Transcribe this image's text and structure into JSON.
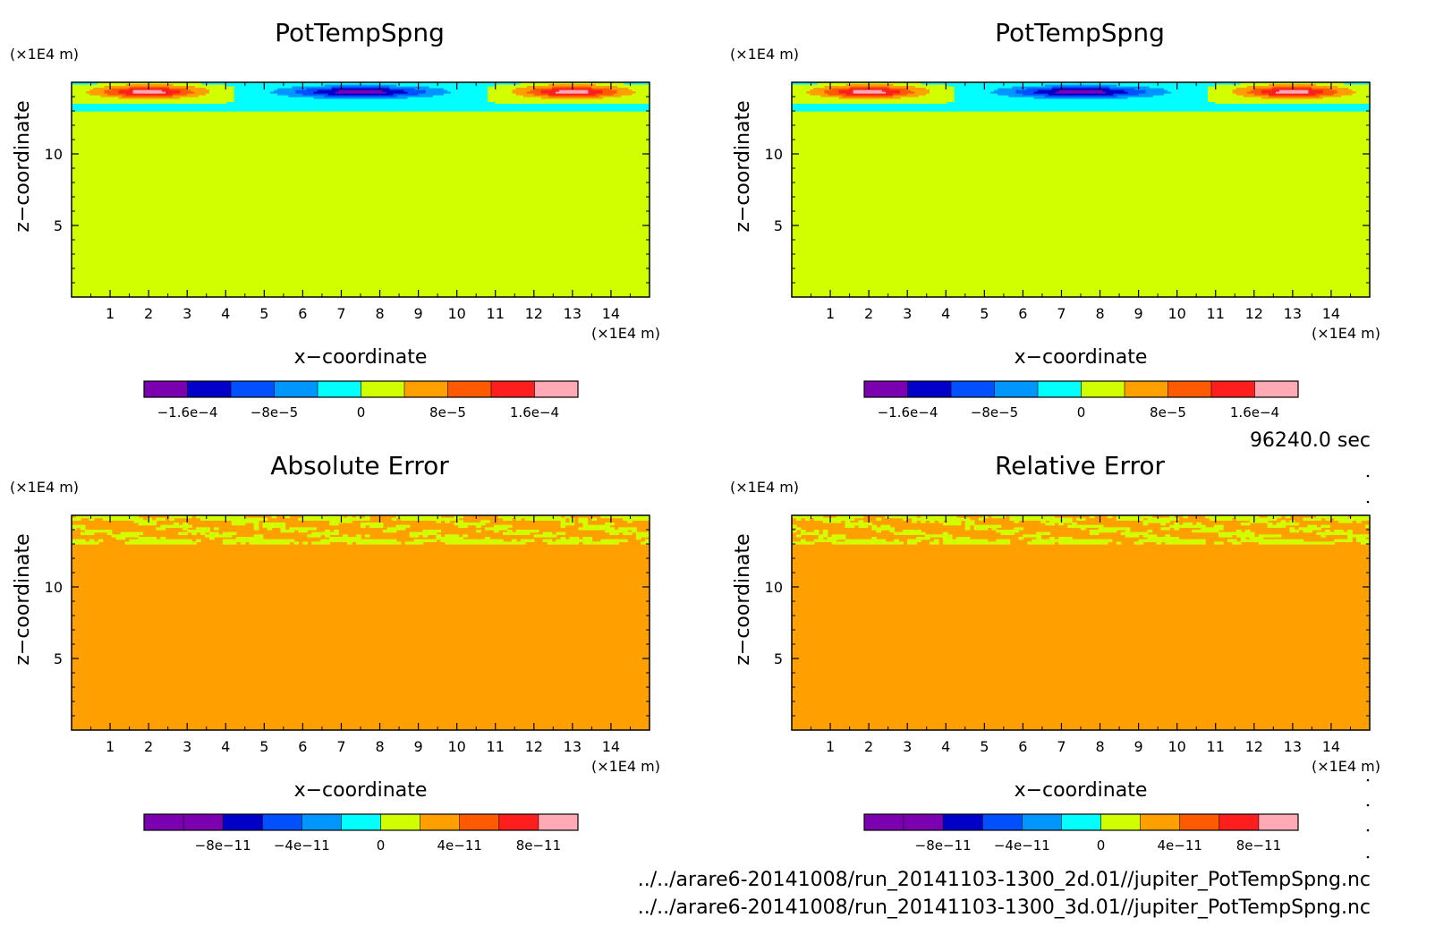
{
  "time_label": "96240.0 sec",
  "files": [
    "../../arare6-20141008/run_20141103-1300_2d.01//jupiter_PotTempSpng.nc",
    "../../arare6-20141008/run_20141103-1300_3d.01//jupiter_PotTempSpng.nc"
  ],
  "palette": [
    "#7a00b0",
    "#0000c8",
    "#0050ff",
    "#0096ff",
    "#00ffff",
    "#d2ff00",
    "#ffa000",
    "#ff5a00",
    "#ff1e1e",
    "#ffaab4"
  ],
  "chart_data": [
    {
      "type": "heatmap",
      "title": "PotTempSpng",
      "xlabel": "x−coordinate",
      "ylabel": "z−coordinate",
      "x_unit": "(×1E4 m)",
      "y_unit": "(×1E4 m)",
      "xlim": [
        0,
        15
      ],
      "ylim": [
        0,
        15
      ],
      "xticks": [
        "1",
        "2",
        "3",
        "4",
        "5",
        "6",
        "7",
        "8",
        "9",
        "10",
        "11",
        "12",
        "13",
        "14"
      ],
      "yticks": [
        "5",
        "10"
      ],
      "colorbar_levels": [
        -0.0002,
        -0.00016,
        -0.00012,
        -8e-05,
        -4e-05,
        0,
        4e-05,
        8e-05,
        0.00012,
        0.00016,
        0.0002
      ],
      "colorbar_labels": [
        "−1.6e−4",
        "−8e−5",
        "0",
        "8e−5",
        "1.6e−4"
      ],
      "field": "sponge",
      "sponge_z": [
        13.0,
        15.0
      ],
      "extrema": {
        "min_center_x": 7.5,
        "max_center_x": [
          2,
          13
        ]
      }
    },
    {
      "type": "heatmap",
      "title": "PotTempSpng",
      "xlabel": "x−coordinate",
      "ylabel": "z−coordinate",
      "x_unit": "(×1E4 m)",
      "y_unit": "(×1E4 m)",
      "xlim": [
        0,
        15
      ],
      "ylim": [
        0,
        15
      ],
      "xticks": [
        "1",
        "2",
        "3",
        "4",
        "5",
        "6",
        "7",
        "8",
        "9",
        "10",
        "11",
        "12",
        "13",
        "14"
      ],
      "yticks": [
        "5",
        "10"
      ],
      "colorbar_levels": [
        -0.0002,
        -0.00016,
        -0.00012,
        -8e-05,
        -4e-05,
        0,
        4e-05,
        8e-05,
        0.00012,
        0.00016,
        0.0002
      ],
      "colorbar_labels": [
        "−1.6e−4",
        "−8e−5",
        "0",
        "8e−5",
        "1.6e−4"
      ],
      "field": "sponge",
      "sponge_z": [
        13.0,
        15.0
      ],
      "extrema": {
        "min_center_x": 7.5,
        "max_center_x": [
          2,
          13
        ]
      }
    },
    {
      "type": "heatmap",
      "title": "Absolute Error",
      "xlabel": "x−coordinate",
      "ylabel": "z−coordinate",
      "x_unit": "(×1E4 m)",
      "y_unit": "(×1E4 m)",
      "xlim": [
        0,
        15
      ],
      "ylim": [
        0,
        15
      ],
      "xticks": [
        "1",
        "2",
        "3",
        "4",
        "5",
        "6",
        "7",
        "8",
        "9",
        "10",
        "11",
        "12",
        "13",
        "14"
      ],
      "yticks": [
        "5",
        "10"
      ],
      "colorbar_levels": [
        -1.2e-10,
        -1e-10,
        -8e-11,
        -6e-11,
        -4e-11,
        -2e-11,
        0,
        2e-11,
        4e-11,
        6e-11,
        8e-11,
        1e-10
      ],
      "colorbar_labels": [
        "−8e−11",
        "−4e−11",
        "0",
        "4e−11",
        "8e−11"
      ],
      "field": "noise",
      "noise_z": [
        13.0,
        15.0
      ]
    },
    {
      "type": "heatmap",
      "title": "Relative Error",
      "xlabel": "x−coordinate",
      "ylabel": "z−coordinate",
      "x_unit": "(×1E4 m)",
      "y_unit": "(×1E4 m)",
      "xlim": [
        0,
        15
      ],
      "ylim": [
        0,
        15
      ],
      "xticks": [
        "1",
        "2",
        "3",
        "4",
        "5",
        "6",
        "7",
        "8",
        "9",
        "10",
        "11",
        "12",
        "13",
        "14"
      ],
      "yticks": [
        "5",
        "10"
      ],
      "colorbar_levels": [
        -1.2e-10,
        -1e-10,
        -8e-11,
        -6e-11,
        -4e-11,
        -2e-11,
        0,
        2e-11,
        4e-11,
        6e-11,
        8e-11,
        1e-10
      ],
      "colorbar_labels": [
        "−8e−11",
        "−4e−11",
        "0",
        "4e−11",
        "8e−11"
      ],
      "field": "noise",
      "noise_z": [
        13.0,
        15.0
      ]
    }
  ]
}
